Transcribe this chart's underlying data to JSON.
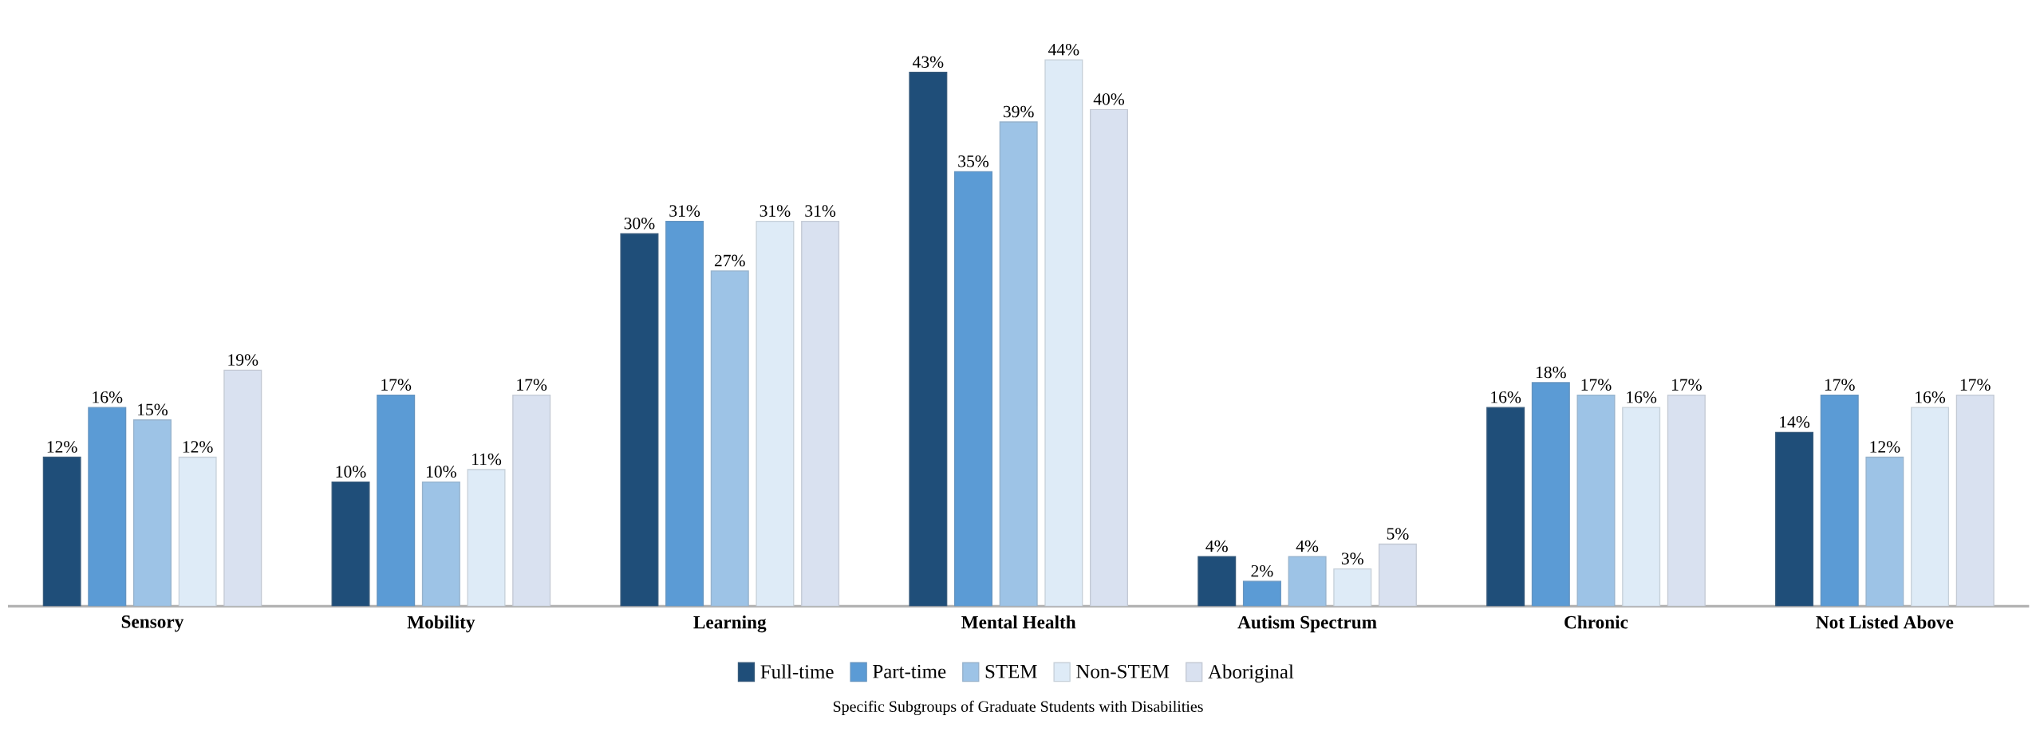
{
  "chart_data": {
    "type": "bar",
    "annotations": [
      "Specific Subgroups of Graduate Students with Disabilities"
    ],
    "categories": [
      "Sensory",
      "Mobility",
      "Learning",
      "Mental Health",
      "Autism Spectrum",
      "Chronic",
      "Not Listed Above"
    ],
    "legend": "bottom",
    "series": [
      {
        "name": "Full-time",
        "color": "#1f4e79",
        "values": [
          12,
          10,
          30,
          43,
          4,
          16,
          14
        ],
        "value_labels": [
          "12%",
          "10%",
          "30%",
          "43%",
          "4%",
          "16%",
          "14%"
        ]
      },
      {
        "name": "Part-time",
        "color": "#5b9bd5",
        "values": [
          16,
          17,
          31,
          35,
          2,
          18,
          17
        ],
        "value_labels": [
          "16%",
          "17%",
          "31%",
          "35%",
          "2%",
          "18%",
          "17%"
        ]
      },
      {
        "name": "STEM",
        "color": "#9dc3e6",
        "values": [
          15,
          10,
          27,
          39,
          4,
          17,
          12
        ],
        "value_labels": [
          "15%",
          "10%",
          "27%",
          "39%",
          "4%",
          "17%",
          "12%"
        ]
      },
      {
        "name": "Non-STEM",
        "color": "#deebf7",
        "values": [
          12,
          11,
          31,
          44,
          3,
          16,
          16
        ],
        "value_labels": [
          "12%",
          "11%",
          "31%",
          "44%",
          "3%",
          "16%",
          "16%"
        ]
      },
      {
        "name": "Aboriginal",
        "color": "#d9e1f0",
        "values": [
          19,
          17,
          31,
          40,
          5,
          17,
          17
        ],
        "value_labels": [
          "19%",
          "17%",
          "31%",
          "40%",
          "5%",
          "17%",
          "17%"
        ]
      }
    ]
  }
}
